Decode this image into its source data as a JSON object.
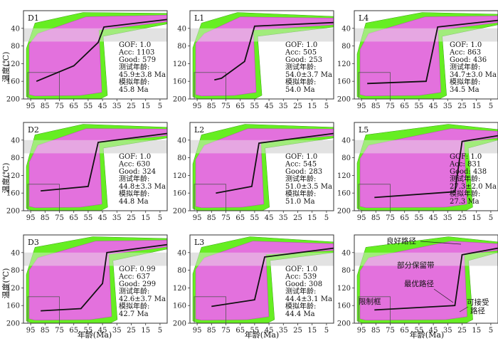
{
  "figure": {
    "y_axis_label": "温度(℃)",
    "x_axis_label": "年龄(Ma)",
    "x_ticks": [
      95,
      85,
      75,
      65,
      55,
      45,
      35,
      25,
      15,
      5
    ],
    "y_ticks": [
      40,
      80,
      120,
      160,
      200
    ],
    "colors": {
      "acceptable": "#66ee22",
      "good": "#ee66ee",
      "best": "#111111",
      "partial_retention_zone": "#dddddd",
      "frame": "#333333"
    }
  },
  "chart_data": [
    {
      "type": "line",
      "panel": "D1",
      "xlim": [
        100,
        0
      ],
      "ylim": [
        0,
        200
      ],
      "best_path": {
        "x": [
          91,
          65,
          48,
          44,
          0
        ],
        "y": [
          160,
          125,
          72,
          37,
          20
        ]
      },
      "stats": [
        "GOF: 1.0",
        "Acc: 1103",
        "Good: 579",
        "测试年龄:",
        "45.9±3.8 Ma",
        "模拟年龄:",
        "45.8 Ma"
      ]
    },
    {
      "type": "line",
      "panel": "L1",
      "xlim": [
        100,
        0
      ],
      "ylim": [
        0,
        200
      ],
      "best_path": {
        "x": [
          83,
          78,
          62,
          55,
          0
        ],
        "y": [
          157,
          153,
          115,
          35,
          27
        ]
      },
      "stats": [
        "GOF: 1.0",
        "Acc: 505",
        "Good: 253",
        "测试年龄:",
        "54.0±3.7 Ma",
        "模拟年龄:",
        "54.0 Ma"
      ]
    },
    {
      "type": "line",
      "panel": "L4",
      "xlim": [
        100,
        0
      ],
      "ylim": [
        0,
        200
      ],
      "best_path": {
        "x": [
          91,
          50,
          42,
          0
        ],
        "y": [
          165,
          160,
          37,
          22
        ]
      },
      "stats": [
        "GOF: 1.0",
        "Acc: 863",
        "Good: 436",
        "测试年龄:",
        "34.7±3.0 Ma",
        "模拟年龄:",
        "34.5 Ma"
      ]
    },
    {
      "type": "line",
      "panel": "D2",
      "xlim": [
        100,
        0
      ],
      "ylim": [
        0,
        200
      ],
      "best_path": {
        "x": [
          88,
          55,
          48,
          0
        ],
        "y": [
          155,
          145,
          45,
          25
        ]
      },
      "stats": [
        "GOF: 1.0",
        "Acc: 630",
        "Good: 324",
        "测试年龄:",
        "44.8±3.3 Ma",
        "模拟年龄:",
        "44.8 Ma"
      ]
    },
    {
      "type": "line",
      "panel": "L2",
      "xlim": [
        100,
        0
      ],
      "ylim": [
        0,
        200
      ],
      "best_path": {
        "x": [
          82,
          57,
          52,
          0
        ],
        "y": [
          160,
          145,
          47,
          25
        ]
      },
      "stats": [
        "GOF: 1.0",
        "Acc: 545",
        "Good: 283",
        "测试年龄:",
        "51.0±3.5 Ma",
        "模拟年龄:",
        "51.0 Ma"
      ]
    },
    {
      "type": "line",
      "panel": "L5",
      "xlim": [
        100,
        0
      ],
      "ylim": [
        0,
        200
      ],
      "best_path": {
        "x": [
          86,
          30,
          25,
          0
        ],
        "y": [
          170,
          157,
          43,
          30
        ]
      },
      "stats": [
        "GOF: 1.0",
        "Acc: 831",
        "Good: 438",
        "测试年龄:",
        "27.3±2.0 Ma",
        "模拟年龄:",
        "27.3 Ma"
      ]
    },
    {
      "type": "line",
      "panel": "D3",
      "xlim": [
        100,
        0
      ],
      "ylim": [
        0,
        200
      ],
      "best_path": {
        "x": [
          88,
          60,
          45,
          42,
          0
        ],
        "y": [
          172,
          167,
          110,
          40,
          22
        ]
      },
      "stats": [
        "GOF: 0.99",
        "Acc: 637",
        "Good: 299",
        "测试年龄:",
        "42.6±3.7 Ma",
        "模拟年龄:",
        "42.7 Ma"
      ]
    },
    {
      "type": "line",
      "panel": "L3",
      "xlim": [
        100,
        0
      ],
      "ylim": [
        0,
        200
      ],
      "best_path": {
        "x": [
          85,
          55,
          48,
          0
        ],
        "y": [
          162,
          147,
          50,
          30
        ]
      },
      "stats": [
        "GOF: 1.0",
        "Acc: 539",
        "Good: 308",
        "测试年龄:",
        "44.4±3.1 Ma",
        "模拟年龄:",
        "44.4 Ma"
      ]
    },
    {
      "type": "line",
      "panel": "legend",
      "xlim": [
        100,
        0
      ],
      "ylim": [
        0,
        200
      ],
      "best_path": {
        "x": [
          86,
          30,
          25,
          0
        ],
        "y": [
          170,
          160,
          45,
          30
        ]
      },
      "annotations": [
        "良好路径",
        "部分保留带",
        "最优路径",
        "限制框",
        "可接受",
        "路径"
      ]
    }
  ]
}
